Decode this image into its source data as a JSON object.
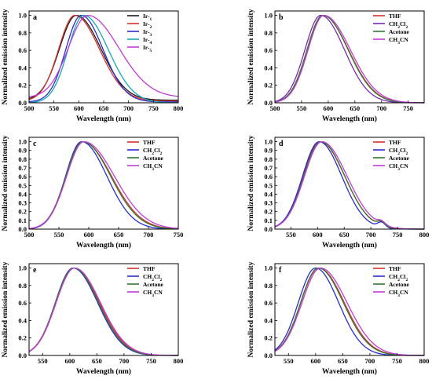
{
  "colors": {
    "black": "#1a1a1a",
    "red": "#d8312b",
    "orange": "#d8312b",
    "blue": "#2b2bd0",
    "green": "#2f7a2f",
    "magenta": "#c43bd8",
    "teal": "#17a8b4",
    "purple": "#7a2ab4"
  },
  "chart_data": [
    {
      "panel_label": "a",
      "type": "line",
      "xlabel": "Wavelength (nm)",
      "ylabel": "Normalized emission intensity",
      "xlim": [
        500,
        800
      ],
      "ylim": [
        0,
        1.05
      ],
      "xticks": [
        "500",
        "550",
        "600",
        "650",
        "700",
        "750",
        "800"
      ],
      "yticks": [
        "0.0",
        "0.2",
        "0.4",
        "0.6",
        "0.8",
        "1.0"
      ],
      "legend_position": "top-right",
      "series": [
        {
          "name": "Ir-1",
          "color": "#1a1a1a",
          "peak": 595,
          "wl": 48,
          "wr": 70,
          "base": 0.03
        },
        {
          "name": "Ir-2",
          "color": "#d8312b",
          "peak": 592,
          "wl": 46,
          "wr": 70,
          "base": 0.02
        },
        {
          "name": "Ir-3",
          "color": "#2b2bd0",
          "peak": 605,
          "wl": 44,
          "wr": 62,
          "base": 0.01
        },
        {
          "name": "Ir-4",
          "color": "#17a8b4",
          "peak": 610,
          "wl": 45,
          "wr": 70,
          "base": 0.0
        },
        {
          "name": "Ir-5",
          "color": "#c43bd8",
          "peak": 618,
          "wl": 55,
          "wr": 88,
          "base": 0.06
        }
      ]
    },
    {
      "panel_label": "b",
      "type": "line",
      "xlabel": "Wavelength (nm)",
      "ylabel": "Normalized emission intensity",
      "xlim": [
        500,
        780
      ],
      "ylim": [
        0,
        1.05
      ],
      "xticks": [
        "500",
        "550",
        "600",
        "650",
        "700",
        "750"
      ],
      "yticks": [
        "0.0",
        "0.2",
        "0.4",
        "0.6",
        "0.8",
        "1.0"
      ],
      "legend_position": "top-right",
      "series": [
        {
          "name": "THF",
          "color": "#d8312b",
          "peak": 590,
          "wl": 42,
          "wr": 68
        },
        {
          "name": "CH2Cl2",
          "color": "#7a2ab4",
          "peak": 586,
          "wl": 42,
          "wr": 63
        },
        {
          "name": "Acetone",
          "color": "#2f7a2f",
          "peak": 590,
          "wl": 42,
          "wr": 67
        },
        {
          "name": "CH3CN",
          "color": "#c43bd8",
          "peak": 592,
          "wl": 42,
          "wr": 70
        }
      ]
    },
    {
      "panel_label": "c",
      "type": "line",
      "xlabel": "Wavelength (nm)",
      "ylabel": "Normalized emission intensity",
      "xlim": [
        500,
        750
      ],
      "ylim": [
        0,
        1.05
      ],
      "xticks": [
        "500",
        "550",
        "600",
        "650",
        "700",
        "750"
      ],
      "yticks": [
        "0.0",
        "0.1",
        "0.2",
        "0.3",
        "0.4",
        "0.5",
        "0.6",
        "0.7",
        "0.8",
        "0.9",
        "1.0"
      ],
      "legend_position": "top-right",
      "series": [
        {
          "name": "THF",
          "color": "#d8312b",
          "peak": 590,
          "wl": 40,
          "wr": 68
        },
        {
          "name": "CH2Cl2",
          "color": "#2b2bd0",
          "peak": 588,
          "wl": 38,
          "wr": 60
        },
        {
          "name": "Acetone",
          "color": "#2f7a2f",
          "peak": 590,
          "wl": 40,
          "wr": 66
        },
        {
          "name": "CH3CN",
          "color": "#c43bd8",
          "peak": 592,
          "wl": 41,
          "wr": 72
        }
      ]
    },
    {
      "panel_label": "d",
      "type": "line",
      "xlabel": "Wavelength (nm)",
      "ylabel": "Normalized emission intensity",
      "xlim": [
        520,
        800
      ],
      "ylim": [
        0,
        1.05
      ],
      "xticks": [
        "550",
        "600",
        "650",
        "700",
        "750",
        "800"
      ],
      "yticks": [
        "0.0",
        "0.1",
        "0.2",
        "0.3",
        "0.4",
        "0.5",
        "0.6",
        "0.7",
        "0.8",
        "0.9",
        "1.0"
      ],
      "legend_position": "top-right",
      "series": [
        {
          "name": "THF",
          "color": "#d8312b",
          "peak": 605,
          "wl": 45,
          "wr": 65,
          "shoulder": 0.05
        },
        {
          "name": "CH2Cl2",
          "color": "#2b2bd0",
          "peak": 603,
          "wl": 44,
          "wr": 60,
          "shoulder": 0.06
        },
        {
          "name": "Acetone",
          "color": "#2f7a2f",
          "peak": 606,
          "wl": 45,
          "wr": 64,
          "shoulder": 0.05
        },
        {
          "name": "CH3CN",
          "color": "#c43bd8",
          "peak": 608,
          "wl": 46,
          "wr": 67,
          "shoulder": 0.04
        }
      ]
    },
    {
      "panel_label": "e",
      "type": "line",
      "xlabel": "Wavelength (nm)",
      "ylabel": "Normalized emission intensity",
      "xlim": [
        525,
        800
      ],
      "ylim": [
        0,
        1.05
      ],
      "xticks": [
        "550",
        "600",
        "650",
        "700",
        "750",
        "800"
      ],
      "yticks": [
        "0.0",
        "0.2",
        "0.4",
        "0.6",
        "0.8",
        "1.0"
      ],
      "legend_position": "top-right",
      "series": [
        {
          "name": "THF",
          "color": "#d8312b",
          "peak": 608,
          "wl": 47,
          "wr": 66
        },
        {
          "name": "CH2Cl2",
          "color": "#2b2bd0",
          "peak": 606,
          "wl": 46,
          "wr": 64
        },
        {
          "name": "Acetone",
          "color": "#2f7a2f",
          "peak": 607,
          "wl": 47,
          "wr": 65
        },
        {
          "name": "CH3CN",
          "color": "#c43bd8",
          "peak": 609,
          "wl": 48,
          "wr": 67
        }
      ]
    },
    {
      "panel_label": "f",
      "type": "line",
      "xlabel": "Wavelength (nm)",
      "ylabel": "Normalized emission intensity",
      "xlim": [
        525,
        800
      ],
      "ylim": [
        0,
        1.05
      ],
      "xticks": [
        "550",
        "600",
        "650",
        "700",
        "750",
        "800"
      ],
      "yticks": [
        "0.0",
        "0.2",
        "0.4",
        "0.6",
        "0.8",
        "1.0"
      ],
      "legend_position": "top-right",
      "series": [
        {
          "name": "THF",
          "color": "#d8312b",
          "peak": 606,
          "wl": 47,
          "wr": 66
        },
        {
          "name": "CH2Cl2",
          "color": "#2b2bd0",
          "peak": 600,
          "wl": 45,
          "wr": 60
        },
        {
          "name": "Acetone",
          "color": "#2f7a2f",
          "peak": 605,
          "wl": 46,
          "wr": 65
        },
        {
          "name": "CH3CN",
          "color": "#c43bd8",
          "peak": 609,
          "wl": 48,
          "wr": 69
        }
      ]
    }
  ]
}
